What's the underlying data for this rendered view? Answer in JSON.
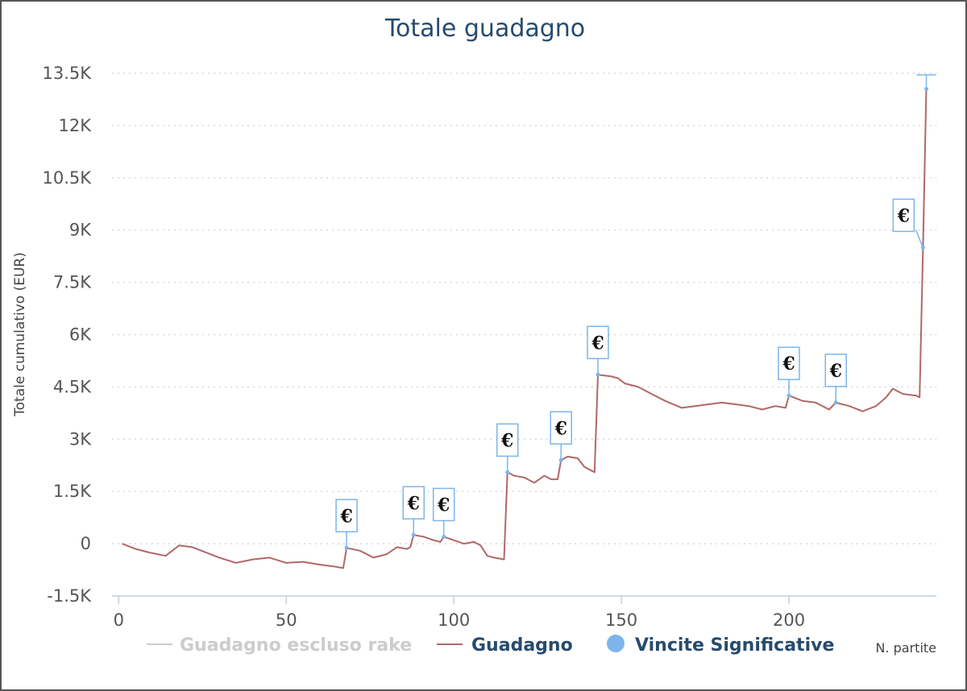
{
  "chart_data": {
    "type": "line",
    "title": "Totale guadagno",
    "xlabel": "N. partite",
    "ylabel": "Totale cumulativo (EUR)",
    "xlim": [
      -2,
      244
    ],
    "ylim": [
      -1500,
      13500
    ],
    "x_ticks": [
      0,
      50,
      100,
      150,
      200
    ],
    "x_tick_labels": [
      "0",
      "50",
      "100",
      "150",
      "200"
    ],
    "y_ticks": [
      -1500,
      0,
      1500,
      3000,
      4500,
      6000,
      7500,
      9000,
      10500,
      12000,
      13500
    ],
    "y_tick_labels": [
      "-1.5K",
      "0",
      "1.5K",
      "3K",
      "4.5K",
      "6K",
      "7.5K",
      "9K",
      "10.5K",
      "12K",
      "13.5K"
    ],
    "grid": "horizontal dotted",
    "legend_position": "bottom-center",
    "legend": [
      {
        "label": "Guadagno escluso rake",
        "state": "hidden",
        "color": "#cccccc"
      },
      {
        "label": "Guadagno",
        "color": "#b06868"
      },
      {
        "label": "Vincite Significative",
        "color": "#7cb5ec"
      }
    ],
    "series": [
      {
        "name": "Guadagno",
        "color": "#b06868",
        "x": [
          1,
          5,
          9,
          14,
          18,
          22,
          26,
          30,
          35,
          40,
          45,
          50,
          55,
          60,
          64,
          67,
          68,
          72,
          76,
          80,
          83,
          86,
          87,
          88,
          91,
          94,
          96,
          97,
          100,
          103,
          106,
          108,
          110,
          112,
          115,
          116,
          118,
          121,
          124,
          127,
          129,
          131,
          132,
          134,
          137,
          139,
          141,
          142,
          143,
          147,
          149,
          151,
          155,
          159,
          163,
          168,
          172,
          176,
          180,
          184,
          188,
          192,
          196,
          199,
          200,
          204,
          208,
          212,
          214,
          218,
          222,
          226,
          229,
          231,
          234,
          238,
          239,
          240,
          241
        ],
        "y": [
          0,
          -150,
          -250,
          -350,
          -50,
          -100,
          -250,
          -400,
          -550,
          -450,
          -400,
          -550,
          -520,
          -600,
          -650,
          -700,
          -120,
          -200,
          -400,
          -300,
          -100,
          -150,
          -100,
          250,
          200,
          100,
          50,
          200,
          100,
          0,
          50,
          -50,
          -350,
          -400,
          -450,
          2050,
          1950,
          1900,
          1750,
          1950,
          1850,
          1850,
          2400,
          2500,
          2450,
          2200,
          2100,
          2050,
          4850,
          4800,
          4750,
          4600,
          4500,
          4300,
          4100,
          3900,
          3950,
          4000,
          4050,
          4000,
          3950,
          3850,
          3950,
          3900,
          4250,
          4100,
          4050,
          3850,
          4050,
          3950,
          3800,
          3950,
          4200,
          4450,
          4300,
          4250,
          4200,
          8500,
          13050
        ]
      }
    ],
    "markers": {
      "name": "Vincite Significative",
      "symbol": "€",
      "x": [
        68,
        88,
        97,
        116,
        132,
        143,
        200,
        214,
        240
      ],
      "y": [
        -120,
        250,
        200,
        2050,
        2400,
        4850,
        4250,
        4050,
        8500
      ]
    },
    "top_marker": {
      "x": 241,
      "y": 13050
    }
  }
}
